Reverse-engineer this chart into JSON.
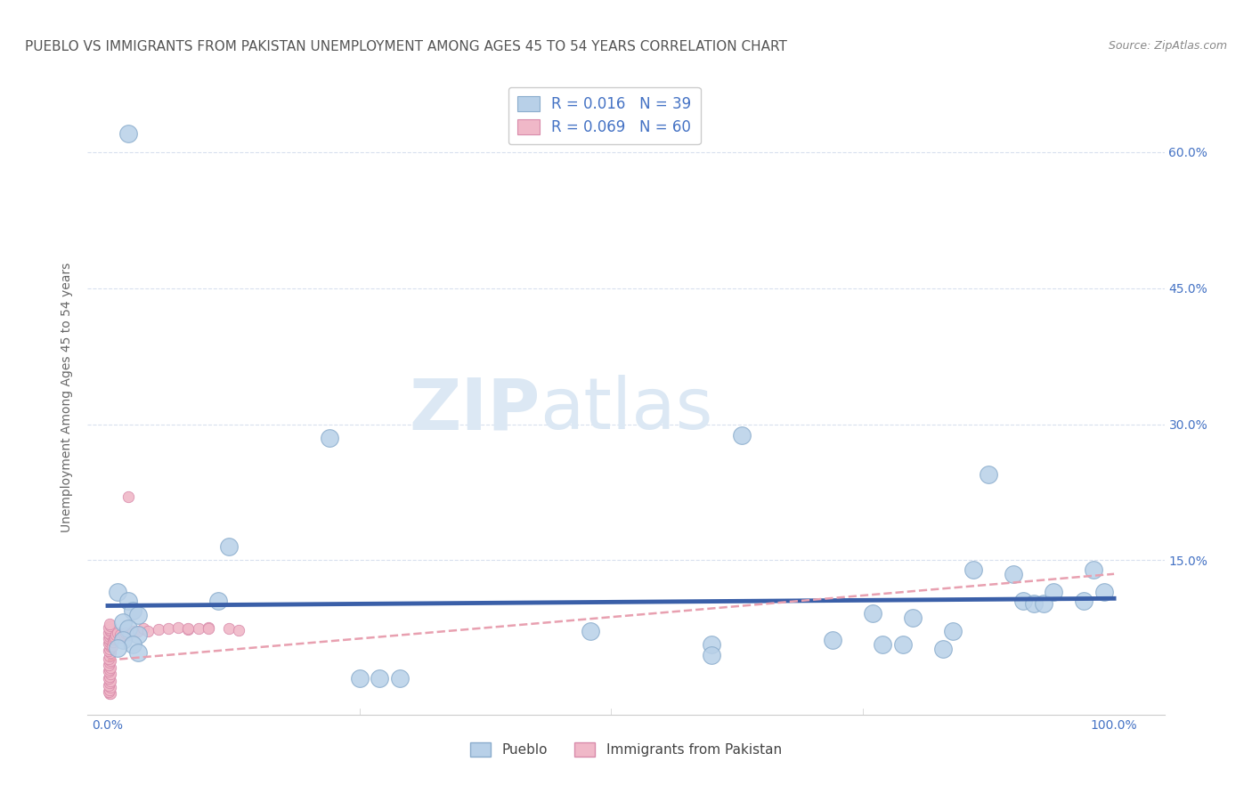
{
  "title": "PUEBLO VS IMMIGRANTS FROM PAKISTAN UNEMPLOYMENT AMONG AGES 45 TO 54 YEARS CORRELATION CHART",
  "source_text": "Source: ZipAtlas.com",
  "ylabel": "Unemployment Among Ages 45 to 54 years",
  "xlim": [
    -0.02,
    1.05
  ],
  "ylim": [
    -0.02,
    0.68
  ],
  "ytick_positions": [
    0.15,
    0.3,
    0.45,
    0.6
  ],
  "ytick_labels": [
    "15.0%",
    "30.0%",
    "45.0%",
    "60.0%"
  ],
  "pueblo_points": [
    [
      0.02,
      0.62
    ],
    [
      0.22,
      0.285
    ],
    [
      0.12,
      0.165
    ],
    [
      0.01,
      0.115
    ],
    [
      0.11,
      0.105
    ],
    [
      0.02,
      0.105
    ],
    [
      0.025,
      0.095
    ],
    [
      0.03,
      0.09
    ],
    [
      0.015,
      0.082
    ],
    [
      0.02,
      0.075
    ],
    [
      0.03,
      0.068
    ],
    [
      0.015,
      0.062
    ],
    [
      0.025,
      0.057
    ],
    [
      0.01,
      0.053
    ],
    [
      0.03,
      0.048
    ],
    [
      0.25,
      0.02
    ],
    [
      0.27,
      0.02
    ],
    [
      0.29,
      0.02
    ],
    [
      0.48,
      0.072
    ],
    [
      0.6,
      0.057
    ],
    [
      0.6,
      0.046
    ],
    [
      0.63,
      0.288
    ],
    [
      0.72,
      0.062
    ],
    [
      0.76,
      0.092
    ],
    [
      0.77,
      0.057
    ],
    [
      0.79,
      0.057
    ],
    [
      0.8,
      0.087
    ],
    [
      0.83,
      0.052
    ],
    [
      0.84,
      0.072
    ],
    [
      0.86,
      0.14
    ],
    [
      0.875,
      0.245
    ],
    [
      0.9,
      0.135
    ],
    [
      0.91,
      0.105
    ],
    [
      0.92,
      0.102
    ],
    [
      0.93,
      0.102
    ],
    [
      0.94,
      0.115
    ],
    [
      0.97,
      0.105
    ],
    [
      0.98,
      0.14
    ],
    [
      0.99,
      0.115
    ]
  ],
  "pakistan_points": [
    [
      0.002,
      0.003
    ],
    [
      0.003,
      0.003
    ],
    [
      0.001,
      0.005
    ],
    [
      0.002,
      0.007
    ],
    [
      0.003,
      0.01
    ],
    [
      0.001,
      0.012
    ],
    [
      0.002,
      0.015
    ],
    [
      0.003,
      0.017
    ],
    [
      0.001,
      0.02
    ],
    [
      0.002,
      0.022
    ],
    [
      0.003,
      0.025
    ],
    [
      0.001,
      0.028
    ],
    [
      0.002,
      0.03
    ],
    [
      0.003,
      0.032
    ],
    [
      0.001,
      0.035
    ],
    [
      0.002,
      0.038
    ],
    [
      0.003,
      0.04
    ],
    [
      0.001,
      0.042
    ],
    [
      0.002,
      0.045
    ],
    [
      0.003,
      0.048
    ],
    [
      0.001,
      0.05
    ],
    [
      0.002,
      0.052
    ],
    [
      0.003,
      0.055
    ],
    [
      0.001,
      0.058
    ],
    [
      0.002,
      0.06
    ],
    [
      0.003,
      0.062
    ],
    [
      0.001,
      0.064
    ],
    [
      0.002,
      0.066
    ],
    [
      0.003,
      0.068
    ],
    [
      0.001,
      0.07
    ],
    [
      0.003,
      0.072
    ],
    [
      0.002,
      0.074
    ],
    [
      0.001,
      0.076
    ],
    [
      0.003,
      0.078
    ],
    [
      0.002,
      0.08
    ],
    [
      0.004,
      0.055
    ],
    [
      0.005,
      0.06
    ],
    [
      0.006,
      0.063
    ],
    [
      0.007,
      0.065
    ],
    [
      0.008,
      0.068
    ],
    [
      0.01,
      0.07
    ],
    [
      0.012,
      0.068
    ],
    [
      0.014,
      0.065
    ],
    [
      0.016,
      0.068
    ],
    [
      0.018,
      0.07
    ],
    [
      0.02,
      0.068
    ],
    [
      0.025,
      0.072
    ],
    [
      0.03,
      0.072
    ],
    [
      0.035,
      0.075
    ],
    [
      0.04,
      0.072
    ],
    [
      0.05,
      0.074
    ],
    [
      0.06,
      0.075
    ],
    [
      0.07,
      0.076
    ],
    [
      0.08,
      0.074
    ],
    [
      0.09,
      0.075
    ],
    [
      0.1,
      0.076
    ],
    [
      0.12,
      0.075
    ],
    [
      0.13,
      0.073
    ],
    [
      0.02,
      0.22
    ],
    [
      0.08,
      0.075
    ],
    [
      0.1,
      0.075
    ]
  ],
  "pueblo_line_color": "#3a5fa8",
  "pueblo_line_intercept": 0.1,
  "pueblo_line_slope": 0.008,
  "pakistan_line_color": "#e8a0b0",
  "pakistan_line_intercept": 0.04,
  "pakistan_line_slope": 0.095,
  "background_color": "#ffffff",
  "grid_color": "#c8d4e8",
  "watermark_zip": "ZIP",
  "watermark_atlas": "atlas",
  "watermark_color": "#dce8f4",
  "pueblo_dot_color": "#b8d0e8",
  "pueblo_dot_edge": "#8aaccc",
  "pakistan_dot_color": "#f0b8c8",
  "pakistan_dot_edge": "#d88aaa",
  "title_color": "#555555",
  "axis_label_color": "#666666",
  "tick_label_color": "#4472c4",
  "source_color": "#888888",
  "title_fontsize": 11,
  "ylabel_fontsize": 10,
  "tick_fontsize": 10,
  "source_fontsize": 9
}
